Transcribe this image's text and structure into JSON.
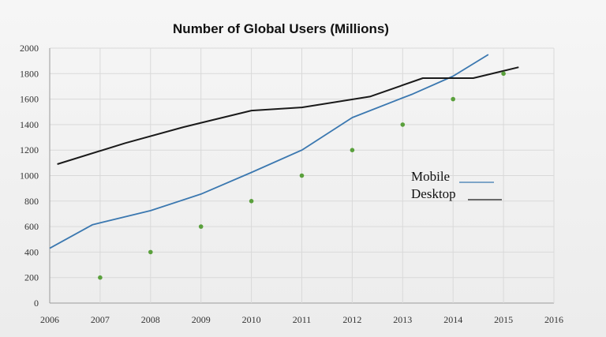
{
  "chart_data": {
    "type": "line",
    "title": "Number of Global Users (Millions)",
    "xlabel": "",
    "ylabel": "",
    "xlim": [
      2006,
      2016
    ],
    "ylim": [
      0,
      2000
    ],
    "x_ticks": [
      "2006",
      "2007",
      "2008",
      "2009",
      "2010",
      "2011",
      "2012",
      "2013",
      "2014",
      "2015",
      "2016"
    ],
    "y_ticks": [
      "0",
      "200",
      "400",
      "600",
      "800",
      "1000",
      "1200",
      "1400",
      "1600",
      "1800",
      "2000"
    ],
    "grid": true,
    "legend": [
      {
        "label": "Mobile",
        "color": "#3b78b0"
      },
      {
        "label": "Desktop",
        "color": "#1a1a1a"
      }
    ],
    "series": [
      {
        "key": "mobile",
        "color": "#3b78b0",
        "x": [
          2006,
          2006.85,
          2008,
          2009,
          2010,
          2011,
          2012,
          2013,
          2013.2,
          2014,
          2014.7
        ],
        "y": [
          430,
          615,
          725,
          855,
          1025,
          1200,
          1455,
          1610,
          1640,
          1780,
          1950
        ]
      },
      {
        "key": "desktop",
        "color": "#1a1a1a",
        "x": [
          2006.15,
          2007.5,
          2008.65,
          2010,
          2011,
          2012.35,
          2013.4,
          2014.4,
          2015.3
        ],
        "y": [
          1090,
          1255,
          1380,
          1510,
          1535,
          1620,
          1765,
          1765,
          1850
        ]
      },
      {
        "key": "points",
        "type": "scatter",
        "color": "#5aa03c",
        "x": [
          2007,
          2008,
          2009,
          2010,
          2011,
          2012,
          2013,
          2014,
          2015
        ],
        "y": [
          200,
          400,
          600,
          800,
          1000,
          1200,
          1400,
          1600,
          1800
        ]
      }
    ]
  }
}
